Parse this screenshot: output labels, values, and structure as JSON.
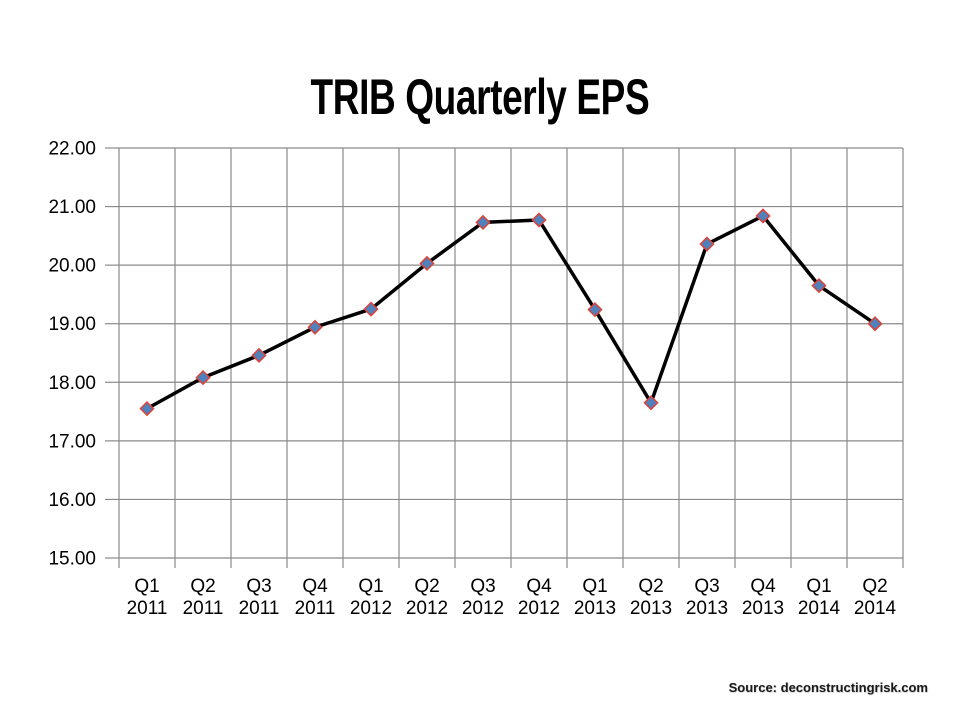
{
  "slide": {
    "source_note": "Source: deconstructingrisk.com"
  },
  "chart_data": {
    "type": "line",
    "title": "TRIB Quarterly EPS",
    "categories": [
      "Q1 2011",
      "Q2 2011",
      "Q3 2011",
      "Q4 2011",
      "Q1 2012",
      "Q2 2012",
      "Q3 2012",
      "Q4 2012",
      "Q1 2013",
      "Q2 2013",
      "Q3 2013",
      "Q4 2013",
      "Q1 2014",
      "Q2 2014"
    ],
    "values": [
      17.55,
      18.08,
      18.46,
      18.94,
      19.25,
      20.03,
      20.73,
      20.77,
      19.24,
      17.65,
      20.36,
      20.84,
      19.65,
      19.0
    ],
    "series_name": "TRIB Quarterly EPS",
    "xlabel": "",
    "ylabel": "",
    "ylim": [
      15,
      22
    ],
    "y_tick_step": 1,
    "y_ticks": [
      "22.00",
      "21.00",
      "20.00",
      "19.00",
      "18.00",
      "17.00",
      "16.00",
      "15.00"
    ],
    "grid": true,
    "legend": "none",
    "marker_shape": "diamond",
    "colors": {
      "line": "#000000",
      "marker_fill": "#4F81BD",
      "marker_border": "#D8453E",
      "gridline": "#8A8A8A",
      "text": "#000000"
    }
  }
}
